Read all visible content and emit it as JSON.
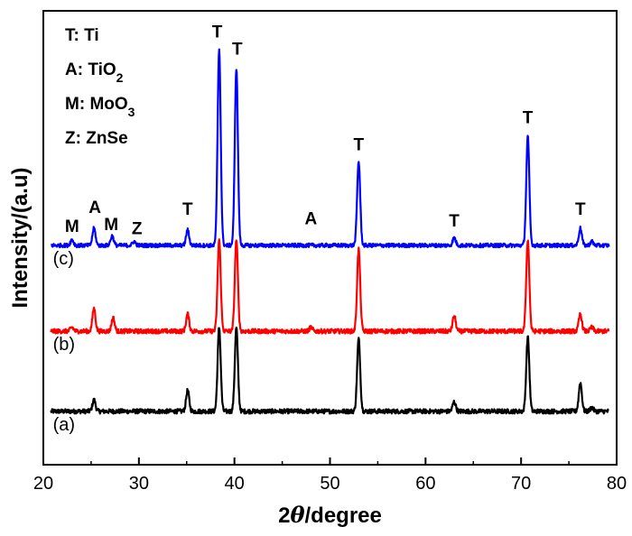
{
  "chart_data": {
    "type": "line",
    "xlabel": {
      "prefix": "2",
      "symbol": "θ",
      "suffix": "/degree"
    },
    "ylabel": "Intensity/(a.u)",
    "xlim": [
      20,
      80
    ],
    "xticks": [
      20,
      30,
      40,
      50,
      60,
      70,
      80
    ],
    "y_ticks_shown": false,
    "grid": false,
    "legend": {
      "placement": "top-left",
      "entries": [
        {
          "symbol": "T",
          "phase": "Ti"
        },
        {
          "symbol": "A",
          "phase": "TiO",
          "sub": "2"
        },
        {
          "symbol": "M",
          "phase": "MoO",
          "sub": "3"
        },
        {
          "symbol": "Z",
          "phase": "ZnSe"
        }
      ]
    },
    "series": [
      {
        "label": "(a)",
        "color": "#000000",
        "baseline": 0.0,
        "noise": 0.012,
        "peaks": [
          {
            "x": 25.3,
            "h": 0.06
          },
          {
            "x": 35.1,
            "h": 0.11
          },
          {
            "x": 38.4,
            "h": 0.44
          },
          {
            "x": 40.2,
            "h": 0.44
          },
          {
            "x": 53.0,
            "h": 0.38
          },
          {
            "x": 63.0,
            "h": 0.05
          },
          {
            "x": 70.7,
            "h": 0.39
          },
          {
            "x": 76.2,
            "h": 0.15
          },
          {
            "x": 77.4,
            "h": 0.02
          }
        ]
      },
      {
        "label": "(b)",
        "color": "#ff0000",
        "baseline": 0.42,
        "noise": 0.012,
        "peaks": [
          {
            "x": 23.0,
            "h": 0.02
          },
          {
            "x": 25.3,
            "h": 0.12
          },
          {
            "x": 27.3,
            "h": 0.07
          },
          {
            "x": 35.1,
            "h": 0.09
          },
          {
            "x": 38.4,
            "h": 0.48
          },
          {
            "x": 40.2,
            "h": 0.48
          },
          {
            "x": 48.0,
            "h": 0.02
          },
          {
            "x": 53.0,
            "h": 0.43
          },
          {
            "x": 63.0,
            "h": 0.08
          },
          {
            "x": 70.7,
            "h": 0.48
          },
          {
            "x": 76.2,
            "h": 0.09
          },
          {
            "x": 77.4,
            "h": 0.02
          }
        ]
      },
      {
        "label": "(c)",
        "color": "#0000ff",
        "baseline": 0.87,
        "noise": 0.01,
        "peaks": [
          {
            "x": 23.0,
            "h": 0.03
          },
          {
            "x": 25.3,
            "h": 0.09
          },
          {
            "x": 27.2,
            "h": 0.05
          },
          {
            "x": 29.5,
            "h": 0.02
          },
          {
            "x": 35.1,
            "h": 0.08
          },
          {
            "x": 38.4,
            "h": 1.03
          },
          {
            "x": 40.2,
            "h": 0.93
          },
          {
            "x": 53.0,
            "h": 0.44
          },
          {
            "x": 63.0,
            "h": 0.04
          },
          {
            "x": 70.7,
            "h": 0.57
          },
          {
            "x": 76.2,
            "h": 0.09
          },
          {
            "x": 77.4,
            "h": 0.02
          }
        ]
      }
    ],
    "peak_labels": [
      {
        "text": "M",
        "x": 23.0,
        "y": 0.94
      },
      {
        "text": "A",
        "x": 25.4,
        "y": 1.04
      },
      {
        "text": "M",
        "x": 27.1,
        "y": 0.95
      },
      {
        "text": "Z",
        "x": 29.8,
        "y": 0.93
      },
      {
        "text": "T",
        "x": 35.1,
        "y": 1.03
      },
      {
        "text": "T",
        "x": 38.2,
        "y": 1.96
      },
      {
        "text": "T",
        "x": 40.3,
        "y": 1.87
      },
      {
        "text": "A",
        "x": 48.0,
        "y": 0.98
      },
      {
        "text": "T",
        "x": 53.0,
        "y": 1.37
      },
      {
        "text": "T",
        "x": 63.0,
        "y": 0.97
      },
      {
        "text": "T",
        "x": 70.7,
        "y": 1.51
      },
      {
        "text": "T",
        "x": 76.2,
        "y": 1.03
      }
    ],
    "curve_labels": [
      {
        "text": "(c)",
        "x": 21.0,
        "y": 0.77
      },
      {
        "text": "(b)",
        "x": 21.0,
        "y": 0.32
      },
      {
        "text": "(a)",
        "x": 21.0,
        "y": -0.1
      }
    ],
    "ylim": [
      -0.28,
      2.1
    ]
  }
}
